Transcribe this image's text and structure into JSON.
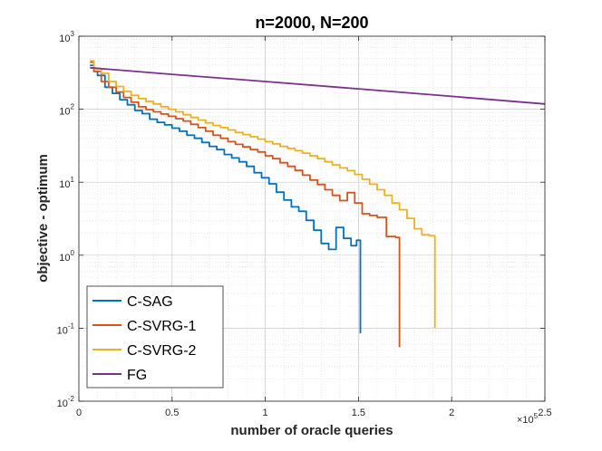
{
  "chart_data": {
    "type": "line",
    "title": "n=2000, N=200",
    "xlabel": "number of oracle queries",
    "ylabel": "objective - optimum",
    "x_exponent_label": "×10",
    "x_exponent_power": "5",
    "xlim": [
      0,
      2.5
    ],
    "ylim_log10": [
      -2,
      3
    ],
    "y_scale": "log",
    "grid": true,
    "minor_grid": true,
    "legend_position": "bottom-left",
    "x_ticks": [
      {
        "value": 0,
        "label": "0"
      },
      {
        "value": 0.5,
        "label": "0.5"
      },
      {
        "value": 1,
        "label": "1"
      },
      {
        "value": 1.5,
        "label": "1.5"
      },
      {
        "value": 2,
        "label": "2"
      },
      {
        "value": 2.5,
        "label": "2.5"
      }
    ],
    "y_ticks": [
      {
        "exp": 3,
        "label": "10",
        "power": "3"
      },
      {
        "exp": 2,
        "label": "10",
        "power": "2"
      },
      {
        "exp": 1,
        "label": "10",
        "power": "1"
      },
      {
        "exp": 0,
        "label": "10",
        "power": "0"
      },
      {
        "exp": -1,
        "label": "10",
        "power": "-1"
      },
      {
        "exp": -2,
        "label": "10",
        "power": "-2"
      }
    ],
    "series": [
      {
        "name": "C-SAG",
        "color": "#0072BD",
        "step": true,
        "x": [
          0.06,
          0.08,
          0.1,
          0.14,
          0.18,
          0.22,
          0.26,
          0.3,
          0.34,
          0.38,
          0.42,
          0.46,
          0.5,
          0.54,
          0.58,
          0.62,
          0.66,
          0.7,
          0.74,
          0.78,
          0.82,
          0.86,
          0.9,
          0.94,
          0.98,
          1.02,
          1.06,
          1.1,
          1.14,
          1.18,
          1.22,
          1.26,
          1.3,
          1.34,
          1.38,
          1.42,
          1.46,
          1.49,
          1.51
        ],
        "y": [
          400,
          330,
          290,
          200,
          165,
          135,
          115,
          96,
          87,
          73,
          66,
          61,
          55,
          50,
          44,
          40,
          35,
          31,
          28,
          24,
          21.5,
          19,
          16.5,
          13.5,
          11.5,
          9.5,
          7.3,
          5.7,
          4.6,
          4.0,
          3.0,
          2.2,
          1.45,
          1.2,
          2.4,
          1.7,
          1.35,
          1.6,
          0.085
        ]
      },
      {
        "name": "C-SVRG-1",
        "color": "#D95319",
        "step": true,
        "x": [
          0.06,
          0.08,
          0.12,
          0.16,
          0.2,
          0.24,
          0.28,
          0.32,
          0.36,
          0.4,
          0.44,
          0.48,
          0.52,
          0.56,
          0.6,
          0.64,
          0.68,
          0.72,
          0.76,
          0.8,
          0.84,
          0.88,
          0.92,
          0.96,
          1.0,
          1.04,
          1.08,
          1.12,
          1.16,
          1.2,
          1.24,
          1.28,
          1.32,
          1.36,
          1.4,
          1.44,
          1.48,
          1.52,
          1.56,
          1.6,
          1.65,
          1.7,
          1.72
        ],
        "y": [
          440,
          330,
          240,
          200,
          172,
          145,
          125,
          108,
          99,
          92,
          86,
          80,
          74,
          69,
          62,
          56,
          50,
          44,
          40,
          36,
          33,
          30.5,
          28,
          26,
          23,
          21,
          18.5,
          16.5,
          14.5,
          12.5,
          10.7,
          9.3,
          7.9,
          6.6,
          5.6,
          7.2,
          5.2,
          3.7,
          3.5,
          3.3,
          1.8,
          1.75,
          0.055
        ]
      },
      {
        "name": "C-SVRG-2",
        "color": "#EDB120",
        "step": true,
        "x": [
          0.06,
          0.08,
          0.12,
          0.16,
          0.2,
          0.24,
          0.28,
          0.32,
          0.36,
          0.4,
          0.44,
          0.48,
          0.52,
          0.56,
          0.6,
          0.64,
          0.68,
          0.72,
          0.76,
          0.8,
          0.84,
          0.88,
          0.92,
          0.96,
          1.0,
          1.04,
          1.08,
          1.12,
          1.16,
          1.2,
          1.24,
          1.28,
          1.32,
          1.36,
          1.4,
          1.44,
          1.48,
          1.52,
          1.56,
          1.6,
          1.64,
          1.68,
          1.72,
          1.76,
          1.8,
          1.84,
          1.88,
          1.91
        ],
        "y": [
          460,
          360,
          310,
          240,
          205,
          175,
          155,
          140,
          128,
          118,
          108,
          100,
          92,
          84,
          77,
          71,
          65,
          60,
          56,
          52,
          48,
          45,
          42,
          39,
          36,
          33.5,
          31,
          29,
          27,
          25,
          23,
          21,
          19,
          17.3,
          15.7,
          14.4,
          12.8,
          11,
          9.4,
          7.9,
          6.6,
          5.2,
          4.2,
          3.2,
          2.3,
          1.9,
          1.85,
          0.1
        ]
      },
      {
        "name": "FG",
        "color": "#7E2F8E",
        "step": false,
        "x": [
          0.06,
          0.5,
          1.0,
          1.5,
          2.0,
          2.5
        ],
        "y": [
          370,
          300,
          240,
          190,
          150,
          118
        ]
      }
    ]
  }
}
